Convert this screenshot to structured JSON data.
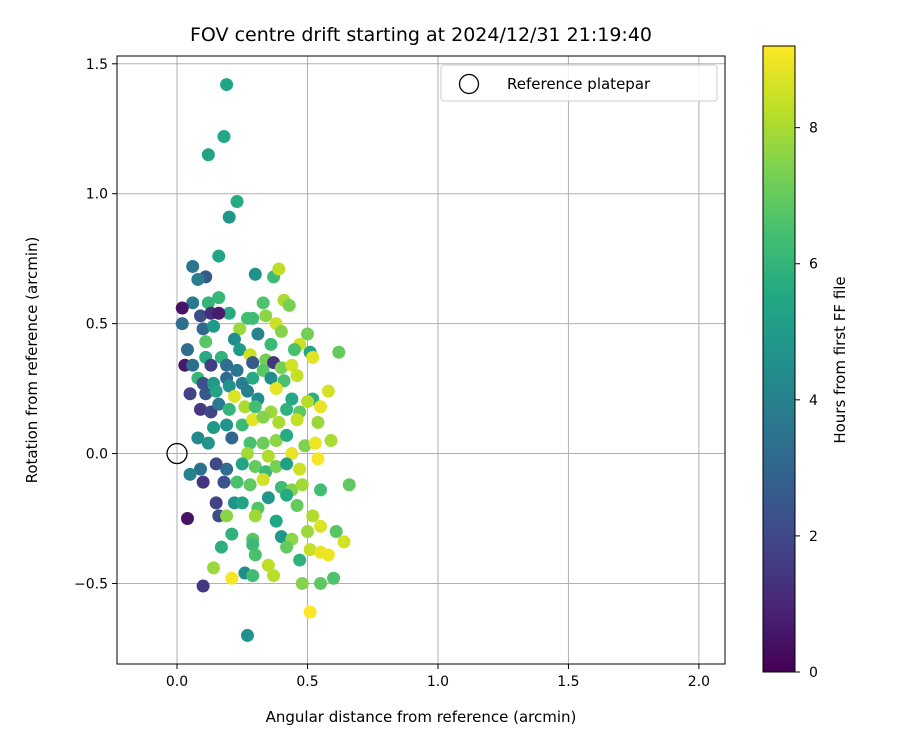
{
  "chart_data": {
    "type": "scatter",
    "title": "FOV centre drift starting at 2024/12/31 21:19:40",
    "xlabel": "Angular distance from reference (arcmin)",
    "ylabel": "Rotation from reference (arcmin)",
    "xlim": [
      -0.23,
      2.1
    ],
    "ylim": [
      -0.81,
      1.53
    ],
    "x_ticks": [
      0.0,
      0.5,
      1.0,
      1.5,
      2.0
    ],
    "x_tick_labels": [
      "0.0",
      "0.5",
      "1.0",
      "1.5",
      "2.0"
    ],
    "y_ticks": [
      -0.5,
      0.0,
      0.5,
      1.0,
      1.5
    ],
    "y_tick_labels": [
      "−0.5",
      "0.0",
      "0.5",
      "1.0",
      "1.5"
    ],
    "grid": true,
    "legend": {
      "placement": "top-right",
      "entries": [
        "Reference platepar"
      ]
    },
    "reference_point": {
      "x": 0.0,
      "y": 0.0,
      "label": "Reference platepar"
    },
    "colorbar": {
      "label": "Hours from first FF file",
      "colormap": "viridis",
      "range": [
        0,
        9.2
      ],
      "ticks": [
        0,
        2,
        4,
        6,
        8
      ],
      "tick_labels": [
        "0",
        "2",
        "4",
        "6",
        "8"
      ]
    },
    "points": [
      [
        0.19,
        1.42,
        5.4
      ],
      [
        0.18,
        1.22,
        5.5
      ],
      [
        0.12,
        1.15,
        5.3
      ],
      [
        0.23,
        0.97,
        5.6
      ],
      [
        0.2,
        0.91,
        4.8
      ],
      [
        0.16,
        0.76,
        5.4
      ],
      [
        0.06,
        0.72,
        3.6
      ],
      [
        0.11,
        0.68,
        2.6
      ],
      [
        0.08,
        0.67,
        3.9
      ],
      [
        0.3,
        0.69,
        4.6
      ],
      [
        0.37,
        0.68,
        6.3
      ],
      [
        0.39,
        0.71,
        8.3
      ],
      [
        0.06,
        0.58,
        3.7
      ],
      [
        0.02,
        0.56,
        0.5
      ],
      [
        0.12,
        0.58,
        6.0
      ],
      [
        0.16,
        0.6,
        6.1
      ],
      [
        0.2,
        0.54,
        5.6
      ],
      [
        0.09,
        0.53,
        2.2
      ],
      [
        0.13,
        0.54,
        1.2
      ],
      [
        0.16,
        0.54,
        0.7
      ],
      [
        0.27,
        0.52,
        6.4
      ],
      [
        0.33,
        0.58,
        6.6
      ],
      [
        0.41,
        0.59,
        8.0
      ],
      [
        0.43,
        0.57,
        7.3
      ],
      [
        0.02,
        0.5,
        3.3
      ],
      [
        0.1,
        0.48,
        3.1
      ],
      [
        0.14,
        0.49,
        5.0
      ],
      [
        0.24,
        0.48,
        7.8
      ],
      [
        0.29,
        0.52,
        6.3
      ],
      [
        0.34,
        0.53,
        7.6
      ],
      [
        0.38,
        0.5,
        8.5
      ],
      [
        0.5,
        0.46,
        7.2
      ],
      [
        0.11,
        0.43,
        6.8
      ],
      [
        0.22,
        0.44,
        4.5
      ],
      [
        0.31,
        0.46,
        4.1
      ],
      [
        0.36,
        0.42,
        6.2
      ],
      [
        0.4,
        0.47,
        7.5
      ],
      [
        0.47,
        0.42,
        8.5
      ],
      [
        0.04,
        0.4,
        3.4
      ],
      [
        0.11,
        0.37,
        5.6
      ],
      [
        0.17,
        0.37,
        5.9
      ],
      [
        0.24,
        0.4,
        5.0
      ],
      [
        0.28,
        0.38,
        8.5
      ],
      [
        0.34,
        0.36,
        7.2
      ],
      [
        0.45,
        0.4,
        6.5
      ],
      [
        0.51,
        0.39,
        5.4
      ],
      [
        0.52,
        0.37,
        8.8
      ],
      [
        0.62,
        0.39,
        7.0
      ],
      [
        0.03,
        0.34,
        0.6
      ],
      [
        0.06,
        0.34,
        3.4
      ],
      [
        0.13,
        0.34,
        1.7
      ],
      [
        0.19,
        0.34,
        3.3
      ],
      [
        0.23,
        0.32,
        3.6
      ],
      [
        0.29,
        0.35,
        2.6
      ],
      [
        0.33,
        0.32,
        6.8
      ],
      [
        0.37,
        0.35,
        1.4
      ],
      [
        0.4,
        0.33,
        7.3
      ],
      [
        0.44,
        0.34,
        8.6
      ],
      [
        0.08,
        0.29,
        6.1
      ],
      [
        0.1,
        0.27,
        2.2
      ],
      [
        0.14,
        0.27,
        4.9
      ],
      [
        0.19,
        0.29,
        3.1
      ],
      [
        0.25,
        0.27,
        3.9
      ],
      [
        0.29,
        0.29,
        5.6
      ],
      [
        0.36,
        0.29,
        4.5
      ],
      [
        0.41,
        0.28,
        6.5
      ],
      [
        0.46,
        0.3,
        8.4
      ],
      [
        0.05,
        0.23,
        1.8
      ],
      [
        0.11,
        0.23,
        2.5
      ],
      [
        0.15,
        0.24,
        5.3
      ],
      [
        0.2,
        0.26,
        4.6
      ],
      [
        0.22,
        0.22,
        8.7
      ],
      [
        0.27,
        0.24,
        4.0
      ],
      [
        0.31,
        0.21,
        4.4
      ],
      [
        0.38,
        0.25,
        8.9
      ],
      [
        0.44,
        0.21,
        5.5
      ],
      [
        0.52,
        0.21,
        5.8
      ],
      [
        0.58,
        0.24,
        8.6
      ],
      [
        0.09,
        0.17,
        1.5
      ],
      [
        0.13,
        0.16,
        1.9
      ],
      [
        0.16,
        0.19,
        3.7
      ],
      [
        0.2,
        0.17,
        6.0
      ],
      [
        0.26,
        0.18,
        8.0
      ],
      [
        0.3,
        0.18,
        6.4
      ],
      [
        0.36,
        0.16,
        7.8
      ],
      [
        0.42,
        0.17,
        5.9
      ],
      [
        0.47,
        0.16,
        6.9
      ],
      [
        0.5,
        0.2,
        8.2
      ],
      [
        0.55,
        0.18,
        8.9
      ],
      [
        0.14,
        0.1,
        4.9
      ],
      [
        0.19,
        0.11,
        4.7
      ],
      [
        0.25,
        0.11,
        6.2
      ],
      [
        0.29,
        0.13,
        8.8
      ],
      [
        0.33,
        0.14,
        7.5
      ],
      [
        0.39,
        0.12,
        8.0
      ],
      [
        0.46,
        0.13,
        8.4
      ],
      [
        0.54,
        0.12,
        7.8
      ],
      [
        0.08,
        0.06,
        4.3
      ],
      [
        0.12,
        0.04,
        4.7
      ],
      [
        0.21,
        0.06,
        3.0
      ],
      [
        0.28,
        0.04,
        6.5
      ],
      [
        0.33,
        0.04,
        7.1
      ],
      [
        0.38,
        0.05,
        7.6
      ],
      [
        0.42,
        0.07,
        5.6
      ],
      [
        0.49,
        0.03,
        7.4
      ],
      [
        0.53,
        0.04,
        9.0
      ],
      [
        0.59,
        0.05,
        8.0
      ],
      [
        0.27,
        0.0,
        7.9
      ],
      [
        0.35,
        -0.01,
        8.1
      ],
      [
        0.44,
        0.0,
        8.9
      ],
      [
        0.54,
        -0.02,
        9.1
      ],
      [
        0.09,
        -0.06,
        3.4
      ],
      [
        0.15,
        -0.04,
        2.0
      ],
      [
        0.19,
        -0.06,
        3.3
      ],
      [
        0.25,
        -0.04,
        5.4
      ],
      [
        0.3,
        -0.05,
        7.0
      ],
      [
        0.34,
        -0.07,
        6.2
      ],
      [
        0.38,
        -0.05,
        7.3
      ],
      [
        0.42,
        -0.04,
        5.2
      ],
      [
        0.47,
        -0.06,
        8.5
      ],
      [
        0.05,
        -0.08,
        4.1
      ],
      [
        0.1,
        -0.11,
        1.4
      ],
      [
        0.18,
        -0.11,
        2.3
      ],
      [
        0.23,
        -0.11,
        6.5
      ],
      [
        0.28,
        -0.12,
        6.9
      ],
      [
        0.33,
        -0.1,
        8.6
      ],
      [
        0.4,
        -0.13,
        6.3
      ],
      [
        0.44,
        -0.14,
        7.5
      ],
      [
        0.48,
        -0.12,
        7.9
      ],
      [
        0.55,
        -0.14,
        6.4
      ],
      [
        0.66,
        -0.12,
        6.9
      ],
      [
        0.15,
        -0.19,
        1.8
      ],
      [
        0.22,
        -0.19,
        4.6
      ],
      [
        0.25,
        -0.19,
        5.3
      ],
      [
        0.31,
        -0.21,
        6.7
      ],
      [
        0.35,
        -0.17,
        4.8
      ],
      [
        0.42,
        -0.16,
        5.6
      ],
      [
        0.46,
        -0.2,
        7.0
      ],
      [
        0.52,
        -0.24,
        8.1
      ],
      [
        0.04,
        -0.25,
        0.5
      ],
      [
        0.16,
        -0.24,
        2.1
      ],
      [
        0.19,
        -0.24,
        7.6
      ],
      [
        0.3,
        -0.24,
        7.9
      ],
      [
        0.38,
        -0.26,
        5.5
      ],
      [
        0.5,
        -0.3,
        7.8
      ],
      [
        0.55,
        -0.28,
        8.7
      ],
      [
        0.61,
        -0.3,
        6.8
      ],
      [
        0.21,
        -0.31,
        5.9
      ],
      [
        0.29,
        -0.33,
        6.8
      ],
      [
        0.4,
        -0.32,
        4.8
      ],
      [
        0.44,
        -0.33,
        7.6
      ],
      [
        0.51,
        -0.37,
        8.4
      ],
      [
        0.17,
        -0.36,
        5.8
      ],
      [
        0.29,
        -0.35,
        6.2
      ],
      [
        0.42,
        -0.36,
        7.0
      ],
      [
        0.55,
        -0.38,
        8.9
      ],
      [
        0.64,
        -0.34,
        8.6
      ],
      [
        0.3,
        -0.39,
        6.5
      ],
      [
        0.35,
        -0.43,
        8.3
      ],
      [
        0.47,
        -0.41,
        5.9
      ],
      [
        0.58,
        -0.39,
        9.0
      ],
      [
        0.14,
        -0.44,
        7.8
      ],
      [
        0.26,
        -0.46,
        4.5
      ],
      [
        0.29,
        -0.47,
        6.3
      ],
      [
        0.37,
        -0.47,
        8.2
      ],
      [
        0.21,
        -0.48,
        9.1
      ],
      [
        0.48,
        -0.5,
        7.5
      ],
      [
        0.55,
        -0.5,
        6.9
      ],
      [
        0.6,
        -0.48,
        6.6
      ],
      [
        0.1,
        -0.51,
        1.5
      ],
      [
        0.51,
        -0.61,
        9.2
      ],
      [
        0.27,
        -0.7,
        4.6
      ]
    ]
  }
}
